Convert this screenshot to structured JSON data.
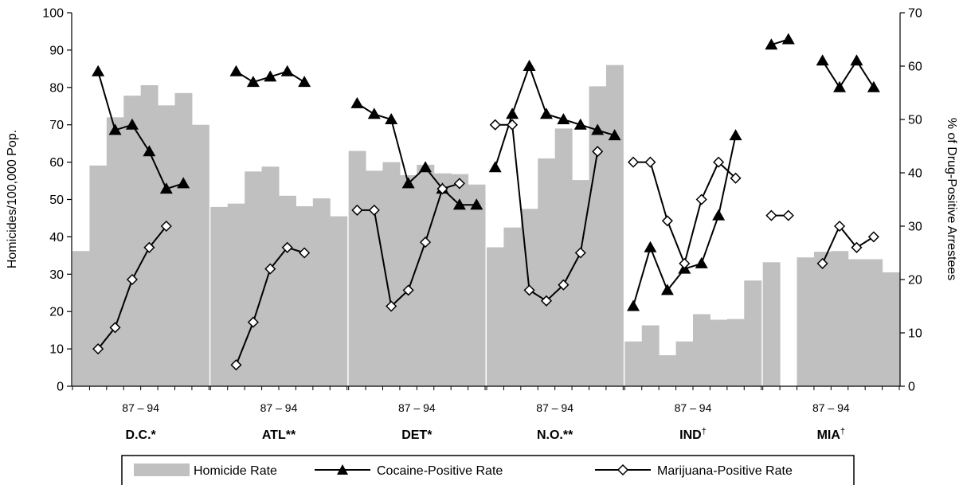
{
  "chart_data": {
    "type": "bar+line",
    "ylabel_left": "Homicides/100,000 Pop.",
    "ylabel_right": "% of Drug-Positive Arrestees",
    "ylim_left": [
      0,
      100
    ],
    "ylim_right": [
      0,
      70
    ],
    "yticks_left": [
      0,
      10,
      20,
      30,
      40,
      50,
      60,
      70,
      80,
      90,
      100
    ],
    "yticks_right": [
      0,
      10,
      20,
      30,
      40,
      50,
      60,
      70
    ],
    "legend": {
      "position": "bottom",
      "entries": [
        "Homicide Rate",
        "Cocaine-Positive Rate",
        "Marijuana-Positive Rate"
      ]
    },
    "groups": [
      {
        "city": "D.C.",
        "mark": "*",
        "period": "87 – 94",
        "homicide": [
          36.2,
          59.1,
          72.0,
          77.8,
          80.6,
          75.2,
          78.5,
          70.0
        ],
        "cocaine": [
          null,
          59,
          48,
          49,
          44,
          37,
          38
        ],
        "marijuana": [
          null,
          7,
          11,
          20,
          26,
          30
        ]
      },
      {
        "city": "ATL",
        "mark": "**",
        "period": "87 – 94",
        "homicide": [
          48.0,
          48.9,
          57.5,
          58.8,
          51.0,
          48.2,
          50.3,
          45.5
        ],
        "cocaine": [
          null,
          59,
          57,
          58,
          59,
          57
        ],
        "marijuana": [
          null,
          4,
          12,
          22,
          26,
          25
        ]
      },
      {
        "city": "DET",
        "mark": "*",
        "period": "87 – 94",
        "homicide": [
          63.0,
          57.7,
          60.0,
          56.5,
          59.3,
          57.0,
          56.8,
          54.0
        ],
        "cocaine": [
          53,
          51,
          50,
          38,
          41,
          37,
          34,
          34
        ],
        "marijuana": [
          33,
          33,
          15,
          18,
          27,
          37,
          38
        ]
      },
      {
        "city": "N.O.",
        "mark": "**",
        "period": "87 – 94",
        "homicide": [
          37.2,
          42.5,
          47.5,
          61.0,
          69.0,
          55.2,
          80.3,
          86.0
        ],
        "cocaine": [
          41,
          51,
          60,
          51,
          50,
          49,
          48,
          47
        ],
        "marijuana": [
          49,
          49,
          18,
          16,
          19,
          25,
          44
        ]
      },
      {
        "city": "IND",
        "mark": "†",
        "period": "87 – 94",
        "homicide": [
          12.0,
          16.3,
          8.3,
          12.0,
          19.3,
          17.8,
          18.0,
          28.3
        ],
        "cocaine": [
          15,
          26,
          18,
          22,
          23,
          32,
          47
        ],
        "marijuana": [
          42,
          42,
          31,
          23,
          35,
          42,
          39
        ]
      },
      {
        "city": "MIA",
        "mark": "†",
        "period": "87 – 94",
        "homicide": [
          33.2,
          null,
          34.5,
          36.0,
          36.2,
          34.0,
          34.0,
          30.5
        ],
        "cocaine": [
          64,
          65,
          null,
          61,
          56,
          61,
          56
        ],
        "marijuana": [
          32,
          32,
          null,
          23,
          30,
          26,
          28
        ]
      }
    ]
  }
}
